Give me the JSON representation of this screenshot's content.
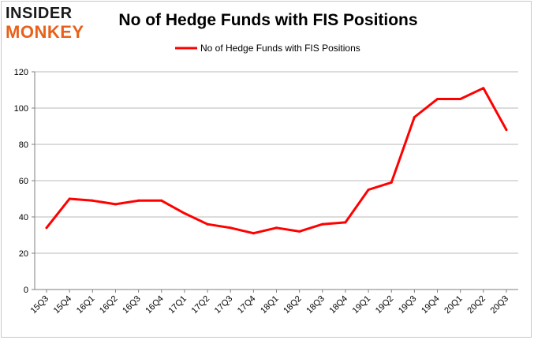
{
  "logo": {
    "line1": "INSIDER",
    "line2": "MONKEY"
  },
  "chart_data": {
    "type": "line",
    "title": "No of Hedge Funds with FIS Positions",
    "xlabel": "",
    "ylabel": "",
    "categories": [
      "15Q3",
      "15Q4",
      "16Q1",
      "16Q2",
      "16Q3",
      "16Q4",
      "17Q1",
      "17Q2",
      "17Q3",
      "17Q4",
      "18Q1",
      "18Q2",
      "18Q3",
      "18Q4",
      "19Q1",
      "19Q2",
      "19Q3",
      "19Q4",
      "20Q1",
      "20Q2",
      "20Q3"
    ],
    "series": [
      {
        "name": "No of Hedge Funds with FIS Positions",
        "color": "#ff0000",
        "values": [
          34,
          50,
          49,
          47,
          49,
          49,
          42,
          36,
          34,
          31,
          34,
          32,
          36,
          37,
          55,
          59,
          95,
          105,
          105,
          111,
          88
        ]
      }
    ],
    "ylim": [
      0,
      120
    ],
    "yticks": [
      0,
      20,
      40,
      60,
      80,
      100,
      120
    ],
    "grid": true,
    "legend": "top-center"
  }
}
